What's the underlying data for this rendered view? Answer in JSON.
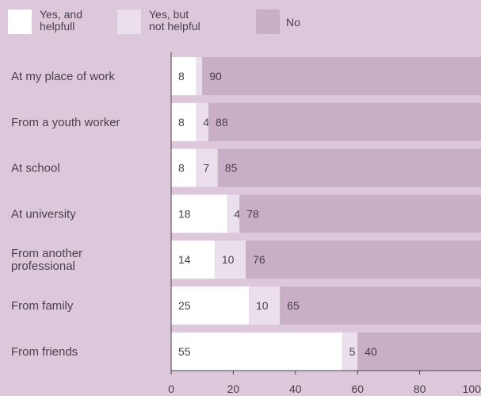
{
  "chart_data": {
    "type": "bar",
    "orientation": "horizontal",
    "stacked": true,
    "categories": [
      "At my place of work",
      "From a youth worker",
      "At school",
      "At university",
      "From another professional",
      "From family",
      "From friends"
    ],
    "category_lines": [
      [
        "At my place of work"
      ],
      [
        "From a youth worker"
      ],
      [
        "At school"
      ],
      [
        "At university"
      ],
      [
        "From another",
        "professional"
      ],
      [
        "From family"
      ],
      [
        "From friends"
      ]
    ],
    "series": [
      {
        "name": "Yes, and helpfull",
        "name_lines": [
          "Yes, and",
          "helpfull"
        ],
        "color": "#ffffff",
        "values": [
          8,
          8,
          8,
          18,
          14,
          25,
          55
        ]
      },
      {
        "name": "Yes, but not helpful",
        "name_lines": [
          "Yes, but",
          "not helpful"
        ],
        "color": "#eadfea",
        "values": [
          2,
          4,
          7,
          4,
          10,
          10,
          5
        ]
      },
      {
        "name": "No",
        "name_lines": [
          "No"
        ],
        "color": "#c8afc6",
        "values": [
          90,
          88,
          85,
          78,
          76,
          65,
          40
        ]
      }
    ],
    "xlim": [
      0,
      100
    ],
    "xticks": [
      0,
      20,
      40,
      60,
      80,
      100
    ],
    "grid": false,
    "legend_position": "top"
  }
}
